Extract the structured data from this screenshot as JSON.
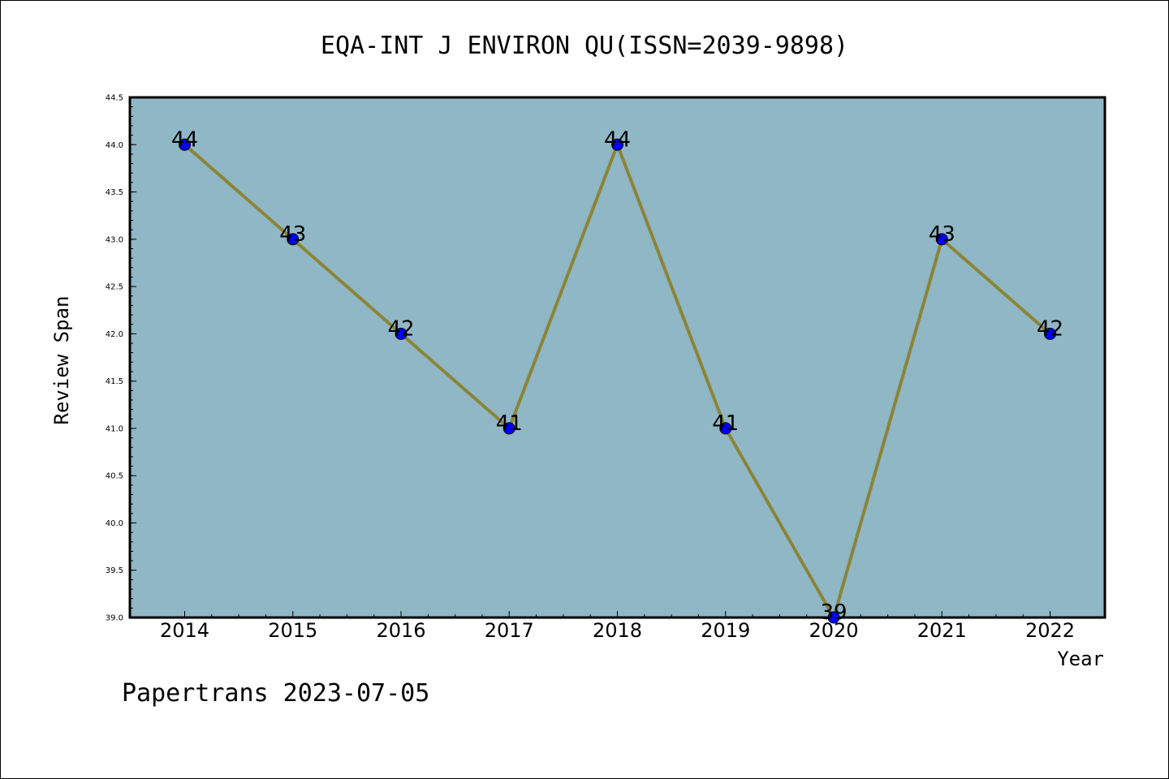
{
  "chart_data": {
    "type": "line",
    "title": "EQA-INT J ENVIRON QU(ISSN=2039-9898)",
    "xlabel": "Year",
    "ylabel": "Review Span",
    "categories": [
      "2014",
      "2015",
      "2016",
      "2017",
      "2018",
      "2019",
      "2020",
      "2021",
      "2022"
    ],
    "series": [
      {
        "values": [
          44,
          43,
          42,
          41,
          44,
          41,
          39,
          43,
          42
        ]
      }
    ],
    "data_labels": [
      "44",
      "43",
      "42",
      "41",
      "44",
      "41",
      "39",
      "43",
      "42"
    ],
    "ylim": [
      39.0,
      44.5
    ],
    "yticks": [
      "39.0",
      "39.5",
      "40.0",
      "40.5",
      "41.0",
      "41.5",
      "42.0",
      "42.5",
      "43.0",
      "43.5",
      "44.0",
      "44.5"
    ],
    "grid": false,
    "colors": {
      "plot_background": "#8fb7c5",
      "line": "#8b8437",
      "marker": "#0000ff"
    }
  },
  "footer": "Papertrans 2023-07-05"
}
